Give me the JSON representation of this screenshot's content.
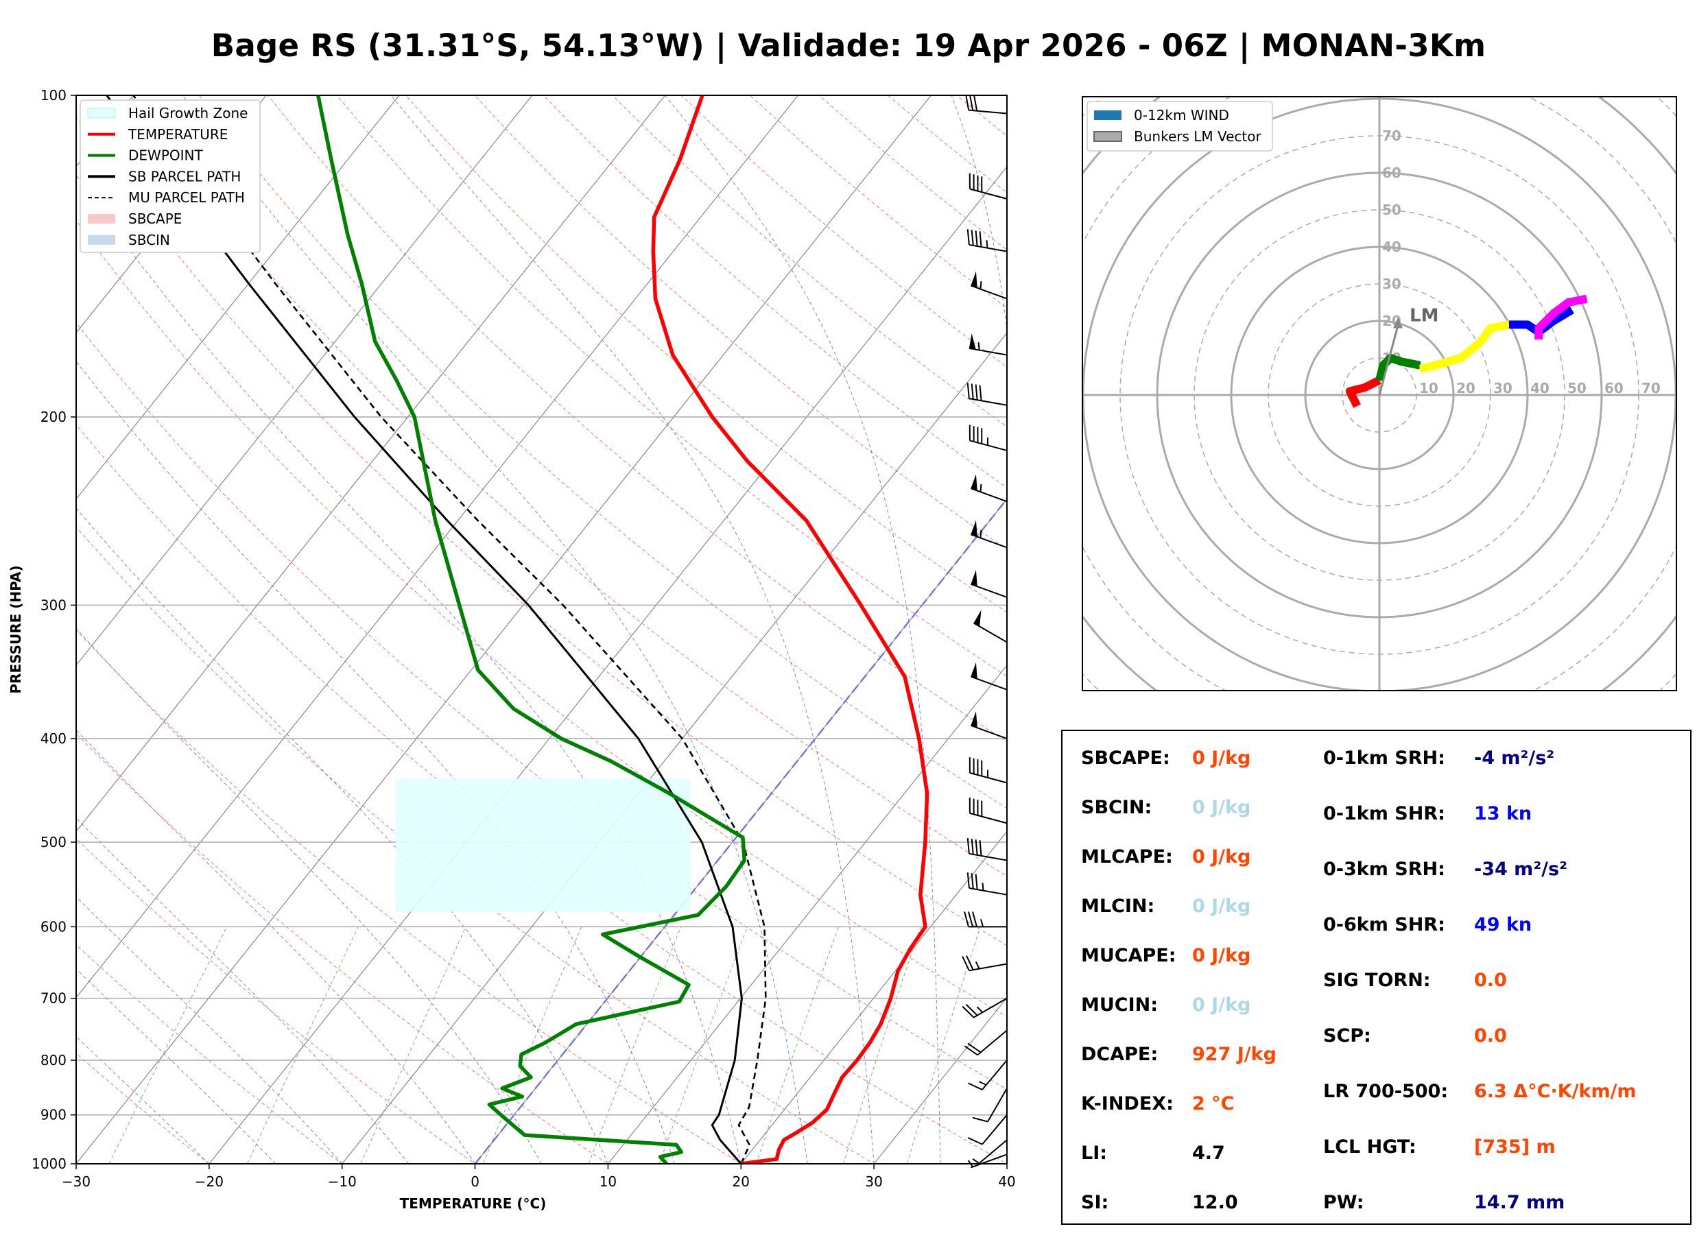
{
  "title": "Bage RS (31.31°S, 54.13°W) | Validade: 19 Apr 2026 - 06Z | MONAN-3Km",
  "chart_data": [
    {
      "type": "skew-t",
      "xlabel": "TEMPERATURE (°C)",
      "ylabel": "PRESSURE (HPA)",
      "xlim": [
        -30,
        40
      ],
      "ylim": [
        1000,
        100
      ],
      "skew_factor": 0.8,
      "x_ticks": [
        -30,
        -20,
        -10,
        0,
        10,
        20,
        30,
        40
      ],
      "x_tick_labels": [
        "−30",
        "−20",
        "−10",
        "0",
        "10",
        "20",
        "30",
        "40"
      ],
      "p_ticks": [
        1000,
        900,
        800,
        700,
        600,
        500,
        400,
        300,
        200,
        100
      ],
      "p_tick_labels": [
        "1000",
        "900",
        "800",
        "700",
        "600",
        "500",
        "400",
        "300",
        "200",
        "100"
      ],
      "legend": {
        "position": "top-left",
        "items": [
          {
            "label": "Hail Growth Zone",
            "color": "#e0ffff",
            "kind": "patch"
          },
          {
            "label": "TEMPERATURE",
            "color": "#ff0000",
            "kind": "line"
          },
          {
            "label": "DEWPOINT",
            "color": "#008000",
            "kind": "line"
          },
          {
            "label": "SB PARCEL PATH",
            "color": "#000000",
            "kind": "line"
          },
          {
            "label": "MU PARCEL PATH",
            "color": "#000000",
            "kind": "dashed"
          },
          {
            "label": "SBCAPE",
            "color": "#f8c8c8",
            "kind": "patch"
          },
          {
            "label": "SBCIN",
            "color": "#c8daea",
            "kind": "patch"
          }
        ]
      },
      "hail_growth_zone": {
        "p_bottom": 581,
        "p_top": 436
      },
      "temperature": [
        [
          1000,
          20
        ],
        [
          990,
          22.4
        ],
        [
          970,
          22
        ],
        [
          950,
          21.8
        ],
        [
          935,
          22.3
        ],
        [
          915,
          22.9
        ],
        [
          890,
          23.2
        ],
        [
          860,
          22.8
        ],
        [
          830,
          22.4
        ],
        [
          800,
          22.5
        ],
        [
          770,
          22.4
        ],
        [
          740,
          22.1
        ],
        [
          700,
          21.3
        ],
        [
          660,
          20.2
        ],
        [
          630,
          19.8
        ],
        [
          600,
          19.6
        ],
        [
          560,
          17.3
        ],
        [
          500,
          14.5
        ],
        [
          450,
          11.7
        ],
        [
          400,
          7.8
        ],
        [
          350,
          3
        ],
        [
          300,
          -4.6
        ],
        [
          250,
          -13.8
        ],
        [
          220,
          -21.8
        ],
        [
          200,
          -27.1
        ],
        [
          175,
          -33.8
        ],
        [
          155,
          -38.5
        ],
        [
          140,
          -41.5
        ],
        [
          130,
          -43.5
        ],
        [
          115,
          -45
        ],
        [
          100,
          -47.2
        ]
      ],
      "dewpoint": [
        [
          1000,
          14.4
        ],
        [
          985,
          13.5
        ],
        [
          975,
          14.8
        ],
        [
          960,
          14
        ],
        [
          940,
          2
        ],
        [
          900,
          -1
        ],
        [
          880,
          -2.5
        ],
        [
          865,
          -0.5
        ],
        [
          850,
          -2.5
        ],
        [
          830,
          -1
        ],
        [
          810,
          -2.5
        ],
        [
          790,
          -3.1
        ],
        [
          770,
          -2
        ],
        [
          740,
          -0.8
        ],
        [
          705,
          5.6
        ],
        [
          680,
          5.3
        ],
        [
          640,
          -0.1
        ],
        [
          610,
          -4.2
        ],
        [
          585,
          1.8
        ],
        [
          550,
          2.2
        ],
        [
          520,
          2
        ],
        [
          495,
          0.5
        ],
        [
          450,
          -7.7
        ],
        [
          420,
          -14
        ],
        [
          400,
          -19.1
        ],
        [
          375,
          -24.5
        ],
        [
          345,
          -29.5
        ],
        [
          300,
          -34.8
        ],
        [
          250,
          -41.7
        ],
        [
          200,
          -49.5
        ],
        [
          185,
          -53
        ],
        [
          170,
          -57
        ],
        [
          150,
          -61.5
        ],
        [
          135,
          -65.5
        ],
        [
          115,
          -71.2
        ],
        [
          100,
          -76.1
        ]
      ],
      "sb_parcel": [
        [
          1000,
          20
        ],
        [
          950,
          17
        ],
        [
          920,
          15.5
        ],
        [
          900,
          15.4
        ],
        [
          800,
          13.3
        ],
        [
          700,
          10.1
        ],
        [
          600,
          5.1
        ],
        [
          500,
          -2.3
        ],
        [
          400,
          -13.3
        ],
        [
          300,
          -29.6
        ],
        [
          250,
          -40.8
        ],
        [
          200,
          -54
        ],
        [
          150,
          -70
        ],
        [
          100,
          -92
        ]
      ],
      "mu_parcel": [
        [
          1000,
          20
        ],
        [
          960,
          19.5
        ],
        [
          920,
          17.5
        ],
        [
          885,
          17.2
        ],
        [
          800,
          15
        ],
        [
          700,
          11.9
        ],
        [
          600,
          7.5
        ],
        [
          500,
          0.8
        ],
        [
          400,
          -10
        ],
        [
          300,
          -27
        ],
        [
          250,
          -38.5
        ],
        [
          200,
          -52
        ],
        [
          150,
          -68
        ],
        [
          100,
          -90
        ]
      ],
      "wind_barbs": [
        {
          "p": 980,
          "speed": 5,
          "dir": 250
        },
        {
          "p": 950,
          "speed": 5,
          "dir": 230
        },
        {
          "p": 900,
          "speed": 10,
          "dir": 220
        },
        {
          "p": 850,
          "speed": 10,
          "dir": 210
        },
        {
          "p": 800,
          "speed": 15,
          "dir": 220
        },
        {
          "p": 750,
          "speed": 20,
          "dir": 230
        },
        {
          "p": 700,
          "speed": 25,
          "dir": 240
        },
        {
          "p": 650,
          "speed": 25,
          "dir": 260
        },
        {
          "p": 600,
          "speed": 35,
          "dir": 270
        },
        {
          "p": 560,
          "speed": 35,
          "dir": 280
        },
        {
          "p": 520,
          "speed": 40,
          "dir": 280
        },
        {
          "p": 480,
          "speed": 40,
          "dir": 285
        },
        {
          "p": 440,
          "speed": 45,
          "dir": 285
        },
        {
          "p": 400,
          "speed": 50,
          "dir": 290
        },
        {
          "p": 360,
          "speed": 50,
          "dir": 290
        },
        {
          "p": 325,
          "speed": 50,
          "dir": 300
        },
        {
          "p": 295,
          "speed": 50,
          "dir": 290
        },
        {
          "p": 265,
          "speed": 55,
          "dir": 290
        },
        {
          "p": 240,
          "speed": 55,
          "dir": 290
        },
        {
          "p": 215,
          "speed": 45,
          "dir": 285
        },
        {
          "p": 195,
          "speed": 40,
          "dir": 280
        },
        {
          "p": 175,
          "speed": 55,
          "dir": 280
        },
        {
          "p": 155,
          "speed": 55,
          "dir": 290
        },
        {
          "p": 140,
          "speed": 45,
          "dir": 280
        },
        {
          "p": 125,
          "speed": 40,
          "dir": 285
        },
        {
          "p": 104,
          "speed": 30,
          "dir": 275
        }
      ]
    },
    {
      "type": "hodograph",
      "legend": {
        "position": "top-left",
        "items": [
          {
            "label": "0-12km WIND",
            "color": "#1f77b4"
          },
          {
            "label": "Bunkers LM Vector",
            "color": "#aaaaaa"
          }
        ]
      },
      "ring_labels": [
        "10",
        "20",
        "30",
        "40",
        "50",
        "60",
        "70"
      ],
      "x_ring_labels": [
        "10",
        "20",
        "30",
        "40",
        "50",
        "60",
        "70"
      ],
      "bunkers_lm": {
        "label": "LM",
        "u": 5,
        "v": 21
      },
      "segments": [
        {
          "layer": "0-1km",
          "color": "#ff0000",
          "points": [
            [
              -6,
              -3
            ],
            [
              -8,
              1
            ],
            [
              -4,
              2
            ],
            [
              0,
              4
            ]
          ]
        },
        {
          "layer": "1-3km",
          "color": "#008000",
          "points": [
            [
              0,
              4
            ],
            [
              1,
              8
            ],
            [
              3,
              10
            ],
            [
              6,
              9
            ],
            [
              11,
              8
            ]
          ]
        },
        {
          "layer": "3-6km",
          "color": "#ffff00",
          "points": [
            [
              11,
              7
            ],
            [
              15,
              8
            ],
            [
              22,
              10
            ],
            [
              27,
              14
            ],
            [
              30,
              18
            ],
            [
              35,
              19
            ]
          ]
        },
        {
          "layer": "6-9km",
          "color": "#0000ff",
          "points": [
            [
              35,
              19
            ],
            [
              40,
              19
            ],
            [
              43,
              17
            ],
            [
              47,
              20
            ],
            [
              52,
              23
            ]
          ]
        },
        {
          "layer": "9-12km",
          "color": "#ff00ff",
          "points": [
            [
              43,
              15
            ],
            [
              43,
              18
            ],
            [
              47,
              22
            ],
            [
              51,
              25
            ],
            [
              56,
              26
            ]
          ]
        }
      ]
    }
  ],
  "parameters": {
    "left": [
      {
        "label": "SBCAPE:",
        "value": "0 J/kg",
        "color": "#ff4500"
      },
      {
        "label": "SBCIN:",
        "value": "0 J/kg",
        "color": "#add8e6"
      },
      {
        "label": "MLCAPE:",
        "value": "0 J/kg",
        "color": "#ff4500"
      },
      {
        "label": "MLCIN:",
        "value": "0 J/kg",
        "color": "#add8e6"
      },
      {
        "label": "MUCAPE:",
        "value": "0 J/kg",
        "color": "#ff4500"
      },
      {
        "label": "MUCIN:",
        "value": "0 J/kg",
        "color": "#add8e6"
      },
      {
        "label": "DCAPE:",
        "value": "927 J/kg",
        "color": "#ff4500"
      },
      {
        "label": "K-INDEX:",
        "value": "2 °C",
        "color": "#ff4500"
      },
      {
        "label": "LI:",
        "value": "4.7",
        "color": "#000000"
      },
      {
        "label": "SI:",
        "value": "12.0",
        "color": "#000000"
      }
    ],
    "right": [
      {
        "label": "0-1km SRH:",
        "value": "-4 m²/s²",
        "color": "#000080"
      },
      {
        "label": "0-1km SHR:",
        "value": "13 kn",
        "color": "#0000ff"
      },
      {
        "label": "0-3km SRH:",
        "value": "-34 m²/s²",
        "color": "#000080"
      },
      {
        "label": "0-6km SHR:",
        "value": "49 kn",
        "color": "#0000ff"
      },
      {
        "label": "SIG TORN:",
        "value": "0.0",
        "color": "#ff4500"
      },
      {
        "label": "SCP:",
        "value": "0.0",
        "color": "#ff4500"
      },
      {
        "label": "LR 700-500:",
        "value": "6.3 Δ°C·K/km/m",
        "color": "#ff4500"
      },
      {
        "label": "LCL HGT:",
        "value": "[735] m",
        "color": "#ff4500"
      },
      {
        "label": "PW:",
        "value": "14.7 mm",
        "color": "#000080"
      }
    ]
  }
}
